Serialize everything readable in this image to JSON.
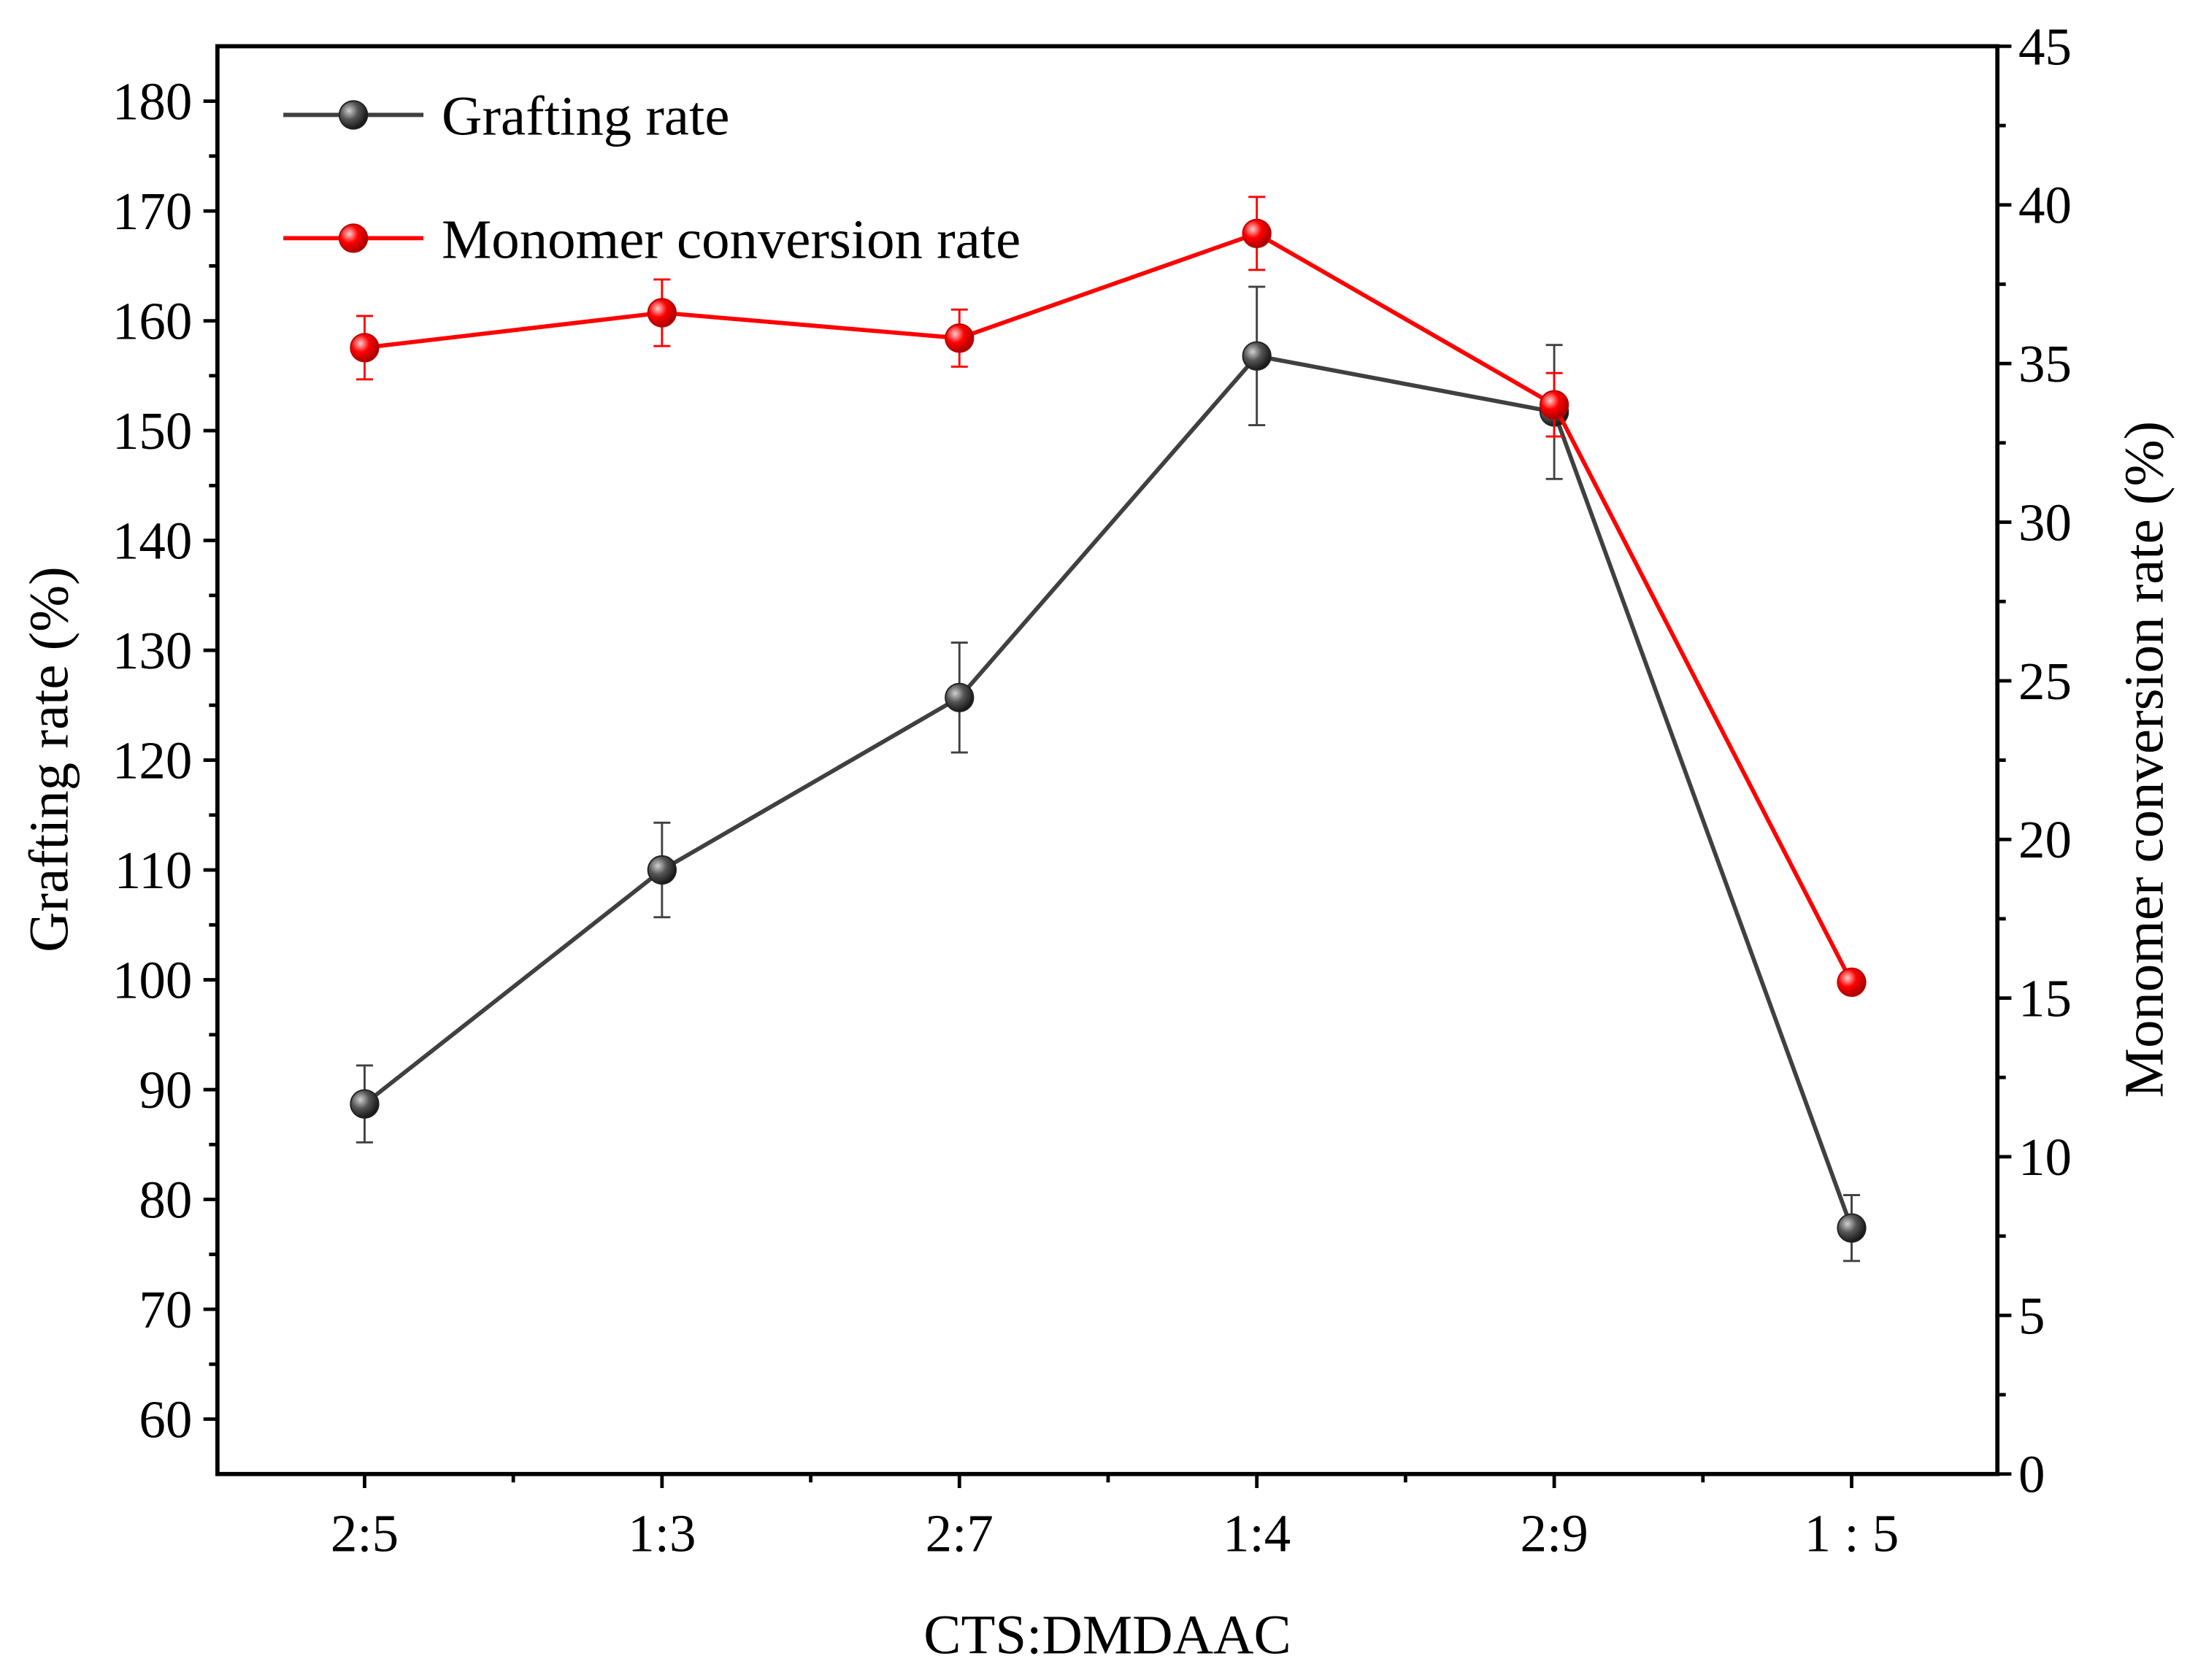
{
  "chart_data": {
    "type": "line",
    "title": "",
    "xlabel": "CTS:DMDAAC",
    "ylabel": "Grafting rate (%)",
    "y2label": "Monomer conversion rate (%)",
    "categories": [
      "2:5",
      "1:3",
      "2:7",
      "1:4",
      "2:9",
      "1 : 5"
    ],
    "ylim": [
      55,
      185
    ],
    "yticks": [
      60,
      70,
      80,
      90,
      100,
      110,
      120,
      130,
      140,
      150,
      160,
      170,
      180
    ],
    "y2lim": [
      0,
      45
    ],
    "y2ticks": [
      0,
      5,
      10,
      15,
      20,
      25,
      30,
      35,
      40,
      45
    ],
    "grid": false,
    "legend_position": "top-left",
    "series": [
      {
        "name": "Grafting rate",
        "axis": "left",
        "color": "#404040",
        "values": [
          88.7,
          110.0,
          125.7,
          156.8,
          151.7,
          77.4
        ],
        "errors": [
          3.5,
          4.3,
          5.0,
          6.3,
          6.1,
          3.0
        ]
      },
      {
        "name": "Monomer conversion rate",
        "axis": "right",
        "color": "#ff0000",
        "values": [
          35.5,
          36.6,
          35.8,
          39.1,
          33.7,
          15.5
        ],
        "errors": [
          1.0,
          1.05,
          0.9,
          1.15,
          1.0,
          0.3
        ]
      }
    ]
  }
}
